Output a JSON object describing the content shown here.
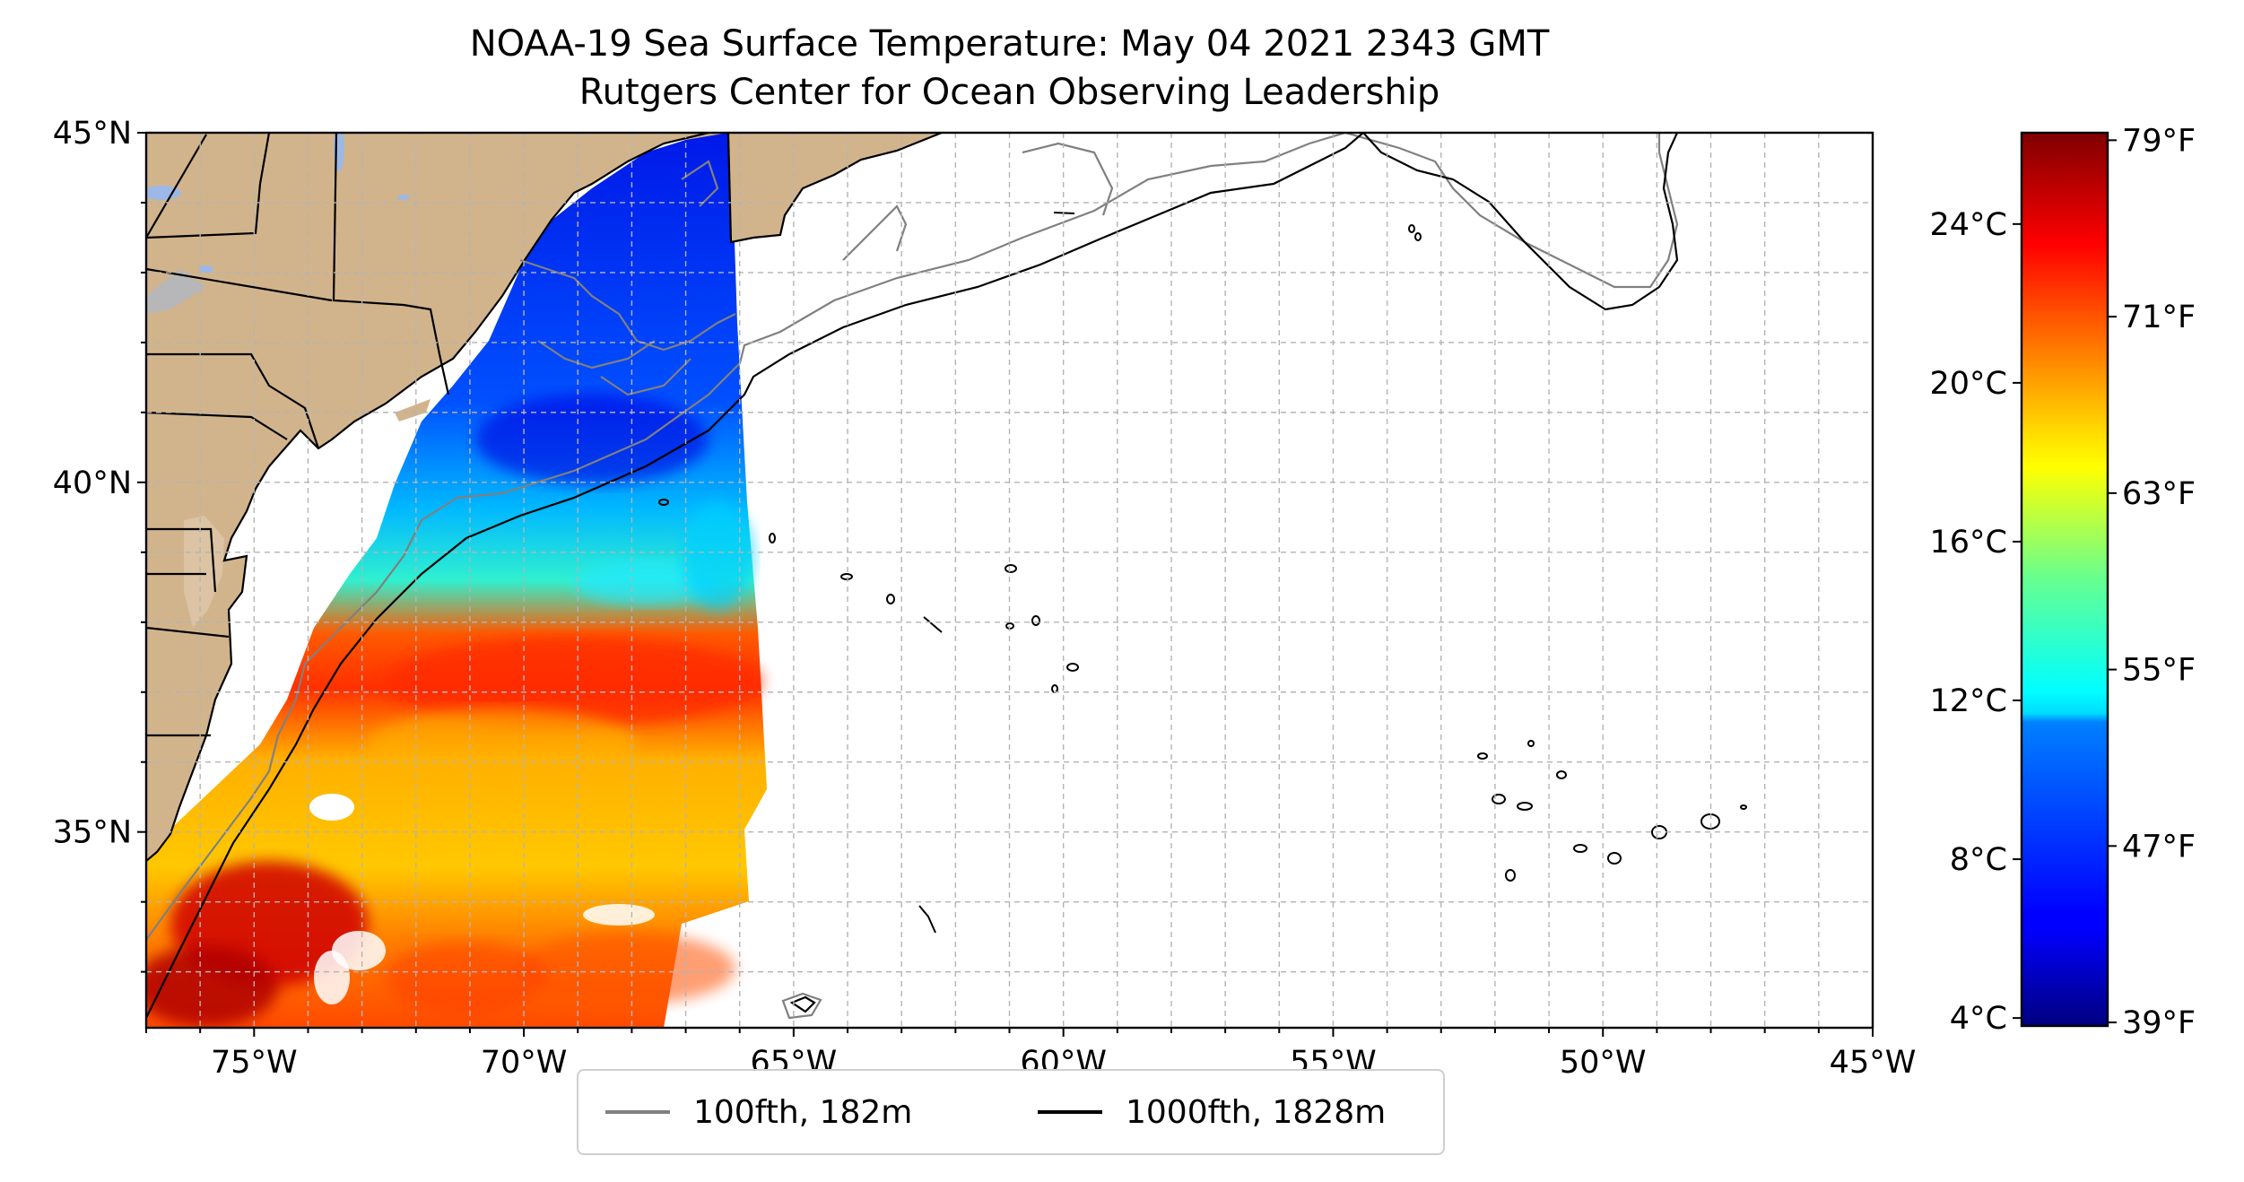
{
  "figure": {
    "title_line1": "NOAA-19 Sea Surface Temperature: May 04 2021 2343 GMT",
    "title_line2": "Rutgers Center for Ocean Observing Leadership"
  },
  "map": {
    "lon_range": [
      -77,
      -45
    ],
    "lat_range": [
      32.2,
      45
    ],
    "lon_ticks": [
      {
        "value": -75,
        "label": "75°W"
      },
      {
        "value": -70,
        "label": "70°W"
      },
      {
        "value": -65,
        "label": "65°W"
      },
      {
        "value": -60,
        "label": "60°W"
      },
      {
        "value": -55,
        "label": "55°W"
      },
      {
        "value": -50,
        "label": "50°W"
      },
      {
        "value": -45,
        "label": "45°W"
      }
    ],
    "lat_ticks": [
      {
        "value": 45,
        "label": "45°N"
      },
      {
        "value": 40,
        "label": "40°N"
      },
      {
        "value": 35,
        "label": "35°N"
      }
    ],
    "gridlines": true,
    "colors": {
      "land": "#d2b48c",
      "lakes": "#9cb8e6",
      "ocean": "#ffffff",
      "isobath_100fth": "#808080",
      "isobath_1000fth": "#000000"
    }
  },
  "legend": {
    "placement": "bottom-center",
    "entries": [
      {
        "label": "100fth, 182m",
        "color": "#808080"
      },
      {
        "label": "1000fth, 1828m",
        "color": "#000000"
      }
    ]
  },
  "colorbar": {
    "colormap": "jet",
    "range_celsius": [
      3.8,
      26.3
    ],
    "celsius_ticks": [
      {
        "value": 4,
        "label": "4°C"
      },
      {
        "value": 8,
        "label": "8°C"
      },
      {
        "value": 12,
        "label": "12°C"
      },
      {
        "value": 16,
        "label": "16°C"
      },
      {
        "value": 20,
        "label": "20°C"
      },
      {
        "value": 24,
        "label": "24°C"
      }
    ],
    "fahrenheit_ticks": [
      {
        "value": 39,
        "label": "39°F"
      },
      {
        "value": 47,
        "label": "47°F"
      },
      {
        "value": 55,
        "label": "55°F"
      },
      {
        "value": 63,
        "label": "63°F"
      },
      {
        "value": 71,
        "label": "71°F"
      },
      {
        "value": 79,
        "label": "79°F"
      }
    ]
  }
}
